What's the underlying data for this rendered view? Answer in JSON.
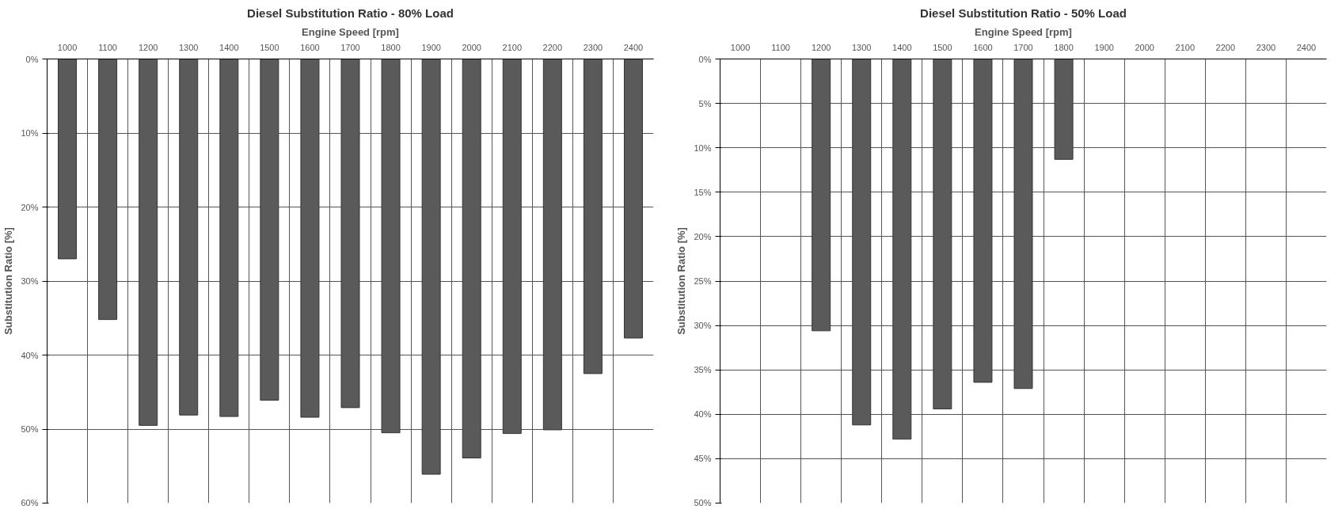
{
  "chart_data": [
    {
      "type": "bar",
      "title": "Diesel Substitution Ratio - 80% Load",
      "xlabel": "Engine Speed [rpm]",
      "ylabel": "Substitution Ratio [%]",
      "categories": [
        "1000",
        "1100",
        "1200",
        "1300",
        "1400",
        "1500",
        "1600",
        "1700",
        "1800",
        "1900",
        "2000",
        "2100",
        "2200",
        "2300",
        "2400"
      ],
      "values": [
        27.0,
        35.2,
        49.5,
        48.1,
        48.3,
        46.1,
        48.4,
        47.1,
        50.5,
        56.1,
        53.9,
        50.6,
        50.1,
        42.5,
        37.7
      ],
      "color": "#5a5a5a",
      "ylim": [
        60,
        0
      ],
      "yticks": [
        {
          "value": 0,
          "label": "0%"
        },
        {
          "value": 10,
          "label": "10%"
        },
        {
          "value": 20,
          "label": "20%"
        },
        {
          "value": 30,
          "label": "30%"
        },
        {
          "value": 40,
          "label": "40%"
        },
        {
          "value": 50,
          "label": "50%"
        },
        {
          "value": 60,
          "label": "60%"
        }
      ],
      "grid": true
    },
    {
      "type": "bar",
      "title": "Diesel Substitution Ratio - 50% Load",
      "xlabel": "Engine Speed [rpm]",
      "ylabel": "Substitution Ratio [%]",
      "categories": [
        "1000",
        "1100",
        "1200",
        "1300",
        "1400",
        "1500",
        "1600",
        "1700",
        "1800",
        "1900",
        "2000",
        "2100",
        "2200",
        "2300",
        "2400"
      ],
      "values": [
        null,
        null,
        30.6,
        41.2,
        42.8,
        39.4,
        36.4,
        37.1,
        11.3,
        null,
        null,
        null,
        null,
        null,
        null
      ],
      "color": "#5a5a5a",
      "ylim": [
        50,
        0
      ],
      "yticks": [
        {
          "value": 0,
          "label": "0%"
        },
        {
          "value": 5,
          "label": "5%"
        },
        {
          "value": 10,
          "label": "10%"
        },
        {
          "value": 15,
          "label": "15%"
        },
        {
          "value": 20,
          "label": "20%"
        },
        {
          "value": 25,
          "label": "25%"
        },
        {
          "value": 30,
          "label": "30%"
        },
        {
          "value": 35,
          "label": "35%"
        },
        {
          "value": 40,
          "label": "40%"
        },
        {
          "value": 45,
          "label": "45%"
        },
        {
          "value": 50,
          "label": "50%"
        }
      ],
      "grid": true
    }
  ]
}
